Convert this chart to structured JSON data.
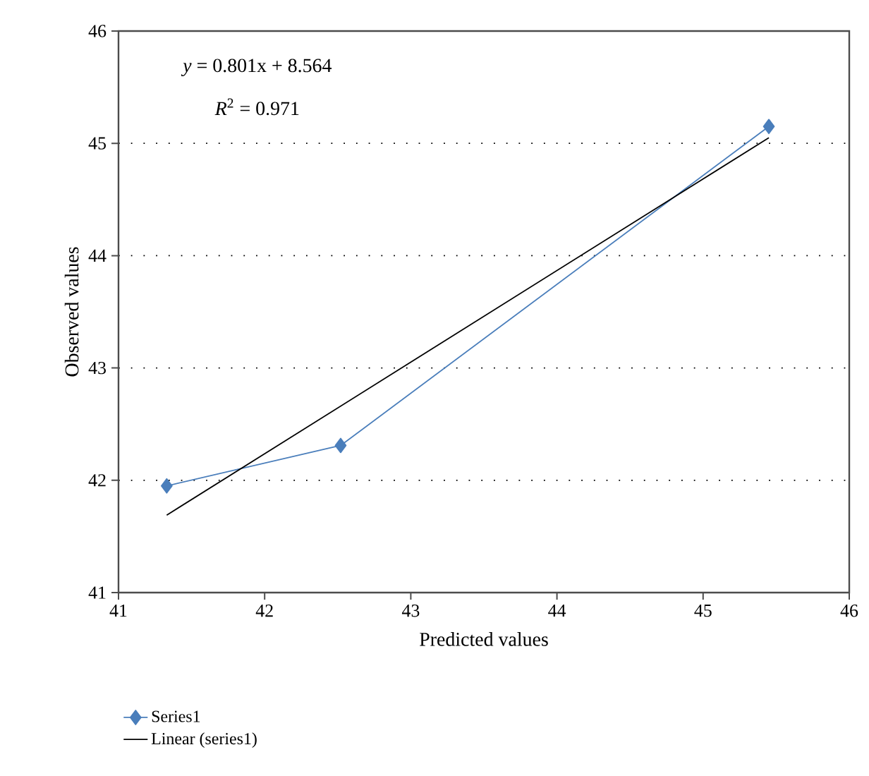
{
  "chart_data": {
    "type": "line",
    "xlabel": "Predicted values",
    "ylabel": "Observed values",
    "xlim": [
      41,
      46
    ],
    "xticks": [
      41,
      42,
      43,
      44,
      45,
      46
    ],
    "ylim": [
      41,
      46
    ],
    "yticks": [
      41,
      42,
      43,
      44,
      45,
      46
    ],
    "grid": "y",
    "legend": "bottom left",
    "series": [
      {
        "name": "Series1",
        "color": "#4a7ebb",
        "marker": "diamond",
        "x": [
          41.33,
          42.52,
          45.45
        ],
        "values": [
          41.95,
          42.31,
          45.15
        ]
      },
      {
        "name": "Linear (series1)",
        "color": "#000000",
        "type": "line",
        "marker": "none",
        "x": [
          41.33,
          45.45
        ],
        "values": [
          41.69,
          45.05
        ]
      }
    ],
    "annotations": [
      "*y* = 0.801x + 8.564",
      "*R*$^{2}$ = 0.971"
    ]
  }
}
